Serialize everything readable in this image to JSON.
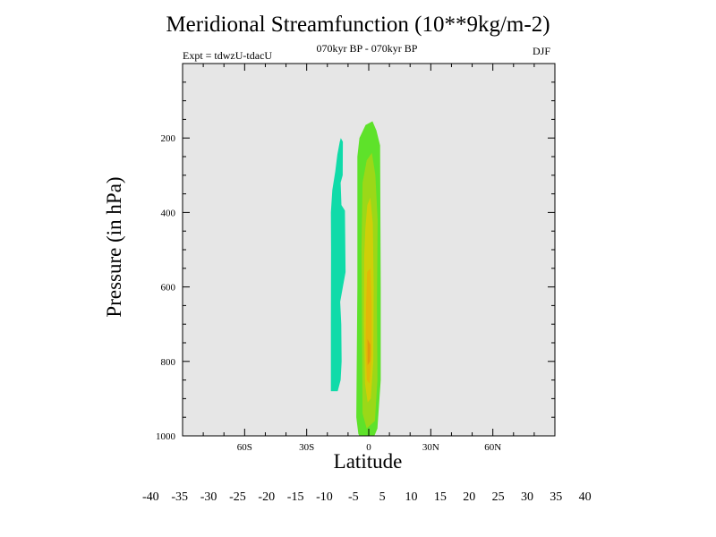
{
  "chart_data": {
    "type": "heatmap",
    "title": "Meridional Streamfunction (10**9kg/m-2)",
    "subtitle": "070kyr BP - 070kyr BP",
    "left_annotation": "Expt = tdwzU-tdacU",
    "right_annotation": "DJF",
    "xlabel": "Latitude",
    "ylabel": "Pressure (in hPa)",
    "xlim": [
      -90,
      90
    ],
    "ylim": [
      1000,
      0
    ],
    "x_ticks": [
      {
        "value": -60,
        "label": "60S"
      },
      {
        "value": -30,
        "label": "30S"
      },
      {
        "value": 0,
        "label": "0"
      },
      {
        "value": 30,
        "label": "30N"
      },
      {
        "value": 60,
        "label": "60N"
      }
    ],
    "y_ticks": [
      {
        "value": 200,
        "label": "200"
      },
      {
        "value": 400,
        "label": "400"
      },
      {
        "value": 600,
        "label": "600"
      },
      {
        "value": 800,
        "label": "800"
      },
      {
        "value": 1000,
        "label": "1000"
      }
    ],
    "background_color": "#e6e6e6",
    "colorbar": {
      "levels": [
        -40,
        -35,
        -30,
        -25,
        -20,
        -15,
        -10,
        -5,
        5,
        10,
        15,
        20,
        25,
        30,
        35,
        40
      ],
      "labels": [
        "-40",
        "-35",
        "-30",
        "-25",
        "-20",
        "-15",
        "-10",
        "-5",
        "5",
        "10",
        "15",
        "20",
        "25",
        "30",
        "35",
        "40"
      ],
      "colors": [
        "#7a17d8",
        "#3a22d6",
        "#2347d7",
        "#1a6fd8",
        "#1496d5",
        "#0ab7d6",
        "#08cdd0",
        "#10dba9",
        "#ededed",
        "#5ee22a",
        "#9bd818",
        "#cfcf08",
        "#e1b808",
        "#e19a0c",
        "#e27a0c",
        "#e25208",
        "#df2a08"
      ]
    },
    "regions": [
      {
        "name": "negative-5-to-10",
        "color": "#10dba9",
        "points": [
          [
            -13.5,
            200
          ],
          [
            -12.5,
            210
          ],
          [
            -12.6,
            300
          ],
          [
            -13.6,
            320
          ],
          [
            -13.2,
            380
          ],
          [
            -11.5,
            395
          ],
          [
            -11.2,
            560
          ],
          [
            -12.5,
            600
          ],
          [
            -13.8,
            640
          ],
          [
            -13.3,
            700
          ],
          [
            -13.1,
            800
          ],
          [
            -13.6,
            850
          ],
          [
            -15.0,
            880
          ],
          [
            -18.3,
            880
          ],
          [
            -18.3,
            700
          ],
          [
            -18.2,
            500
          ],
          [
            -18.3,
            400
          ],
          [
            -17.6,
            340
          ],
          [
            -16.2,
            290
          ],
          [
            -15.2,
            245
          ],
          [
            -14.0,
            210
          ]
        ]
      },
      {
        "name": "positive-5-to-10",
        "color": "#5ee22a",
        "points": [
          [
            -1.5,
            165
          ],
          [
            1.8,
            155
          ],
          [
            3.7,
            180
          ],
          [
            5.5,
            220
          ],
          [
            5.8,
            600
          ],
          [
            5.8,
            850
          ],
          [
            4.2,
            980
          ],
          [
            2.0,
            1010
          ],
          [
            -2.5,
            1020
          ],
          [
            -5.0,
            995
          ],
          [
            -6.0,
            950
          ],
          [
            -5.5,
            600
          ],
          [
            -5.5,
            250
          ],
          [
            -4.5,
            200
          ]
        ]
      },
      {
        "name": "positive-10-to-15",
        "color": "#9bd818",
        "points": [
          [
            -1.0,
            260
          ],
          [
            1.5,
            240
          ],
          [
            3.2,
            300
          ],
          [
            4.3,
            420
          ],
          [
            4.0,
            650
          ],
          [
            4.2,
            850
          ],
          [
            3.0,
            960
          ],
          [
            -1.0,
            980
          ],
          [
            -3.0,
            940
          ],
          [
            -3.3,
            700
          ],
          [
            -3.5,
            500
          ],
          [
            -3.0,
            320
          ]
        ]
      },
      {
        "name": "positive-15-to-20",
        "color": "#cfcf08",
        "points": [
          [
            -0.7,
            380
          ],
          [
            0.8,
            360
          ],
          [
            2.0,
            430
          ],
          [
            2.4,
            600
          ],
          [
            2.2,
            800
          ],
          [
            1.0,
            900
          ],
          [
            -0.5,
            910
          ],
          [
            -1.8,
            860
          ],
          [
            -2.3,
            700
          ],
          [
            -2.2,
            520
          ],
          [
            -1.6,
            440
          ]
        ]
      },
      {
        "name": "positive-20-to-25",
        "color": "#e1b808",
        "points": [
          [
            -0.8,
            560
          ],
          [
            0.8,
            550
          ],
          [
            1.4,
            650
          ],
          [
            1.4,
            780
          ],
          [
            0.4,
            860
          ],
          [
            -0.9,
            850
          ],
          [
            -1.5,
            760
          ],
          [
            -1.3,
            650
          ]
        ]
      },
      {
        "name": "positive-25-to-30",
        "color": "#e19a0c",
        "points": [
          [
            -0.6,
            740
          ],
          [
            0.8,
            755
          ],
          [
            0.6,
            800
          ],
          [
            -0.5,
            810
          ]
        ]
      }
    ]
  }
}
